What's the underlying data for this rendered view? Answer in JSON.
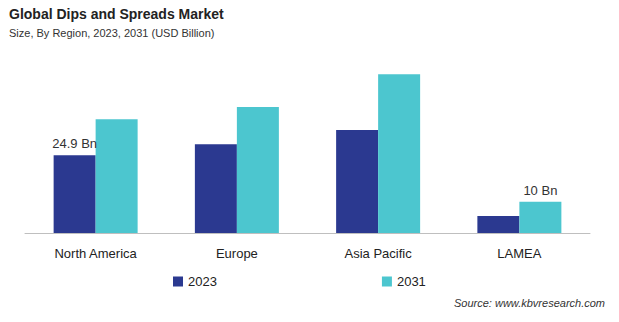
{
  "chart_data": {
    "type": "bar",
    "title": "Global Dips and Spreads Market",
    "subtitle": "Size, By Region, 2023, 2031 (USD Billion)",
    "source": "Source: www.kbvresearch.com",
    "categories": [
      "North America",
      "Europe",
      "Asia Pacific",
      "LAMEA"
    ],
    "series": [
      {
        "name": "2023",
        "color": "#2b3990",
        "values": [
          24.9,
          28.4,
          32.9,
          5.4
        ],
        "value_labels": [
          "24.9 Bn",
          null,
          null,
          null
        ]
      },
      {
        "name": "2031",
        "color": "#4cc6cf",
        "values": [
          36.4,
          40.3,
          50.8,
          10
        ],
        "value_labels": [
          null,
          null,
          null,
          "10 Bn"
        ]
      }
    ],
    "ylim": [
      0,
      55
    ],
    "grid": false,
    "legend": "bottom",
    "tick_labels": "x"
  }
}
